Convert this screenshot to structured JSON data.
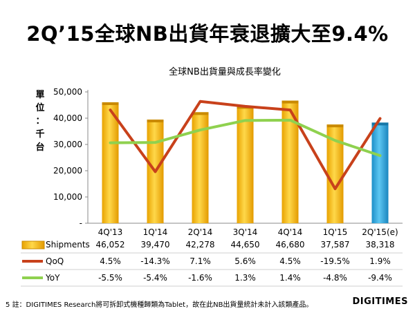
{
  "slide": {
    "title": "2Q’15全球NB出貨年衰退擴大至9.4%",
    "page_number": "5",
    "footnote": "註：DIGITIMES Research將可拆卸式機種歸類為Tablet，故在此NB出貨量統計未計入該類產品。",
    "brand": "DIGITIMES"
  },
  "chart_data": {
    "type": "bar",
    "title": "全球NB出貨量與成長率變化",
    "unit_label": [
      "單",
      "位",
      "：",
      "千",
      "台"
    ],
    "categories": [
      "4Q'13",
      "1Q'14",
      "2Q'14",
      "3Q'14",
      "4Q'14",
      "1Q'15",
      "2Q'15(e)"
    ],
    "ylim": [
      0,
      50000
    ],
    "y_ticks": [
      "-",
      "10,000",
      "20,000",
      "30,000",
      "40,000",
      "50,000"
    ],
    "grid": false,
    "colors": {
      "bar": "#F2B705",
      "bar_estimate": "#29A8E0",
      "qoq": "#C8411B",
      "yoy": "#8FD14F"
    },
    "series": [
      {
        "name": "Shipments",
        "type": "bar",
        "values": [
          46052,
          39470,
          42278,
          44650,
          46680,
          37587,
          38318
        ],
        "labels": [
          "46,052",
          "39,470",
          "42,278",
          "44,650",
          "46,680",
          "37,587",
          "38,318"
        ]
      },
      {
        "name": "QoQ",
        "type": "line",
        "values": [
          4.5,
          -14.3,
          7.1,
          5.6,
          4.5,
          -19.5,
          1.9
        ],
        "labels": [
          "4.5%",
          "-14.3%",
          "7.1%",
          "5.6%",
          "4.5%",
          "-19.5%",
          "1.9%"
        ]
      },
      {
        "name": "YoY",
        "type": "line",
        "values": [
          -5.5,
          -5.4,
          -1.6,
          1.3,
          1.4,
          -4.8,
          -9.4
        ],
        "labels": [
          "-5.5%",
          "-5.4%",
          "-1.6%",
          "1.3%",
          "1.4%",
          "-4.8%",
          "-9.4%"
        ]
      }
    ]
  }
}
